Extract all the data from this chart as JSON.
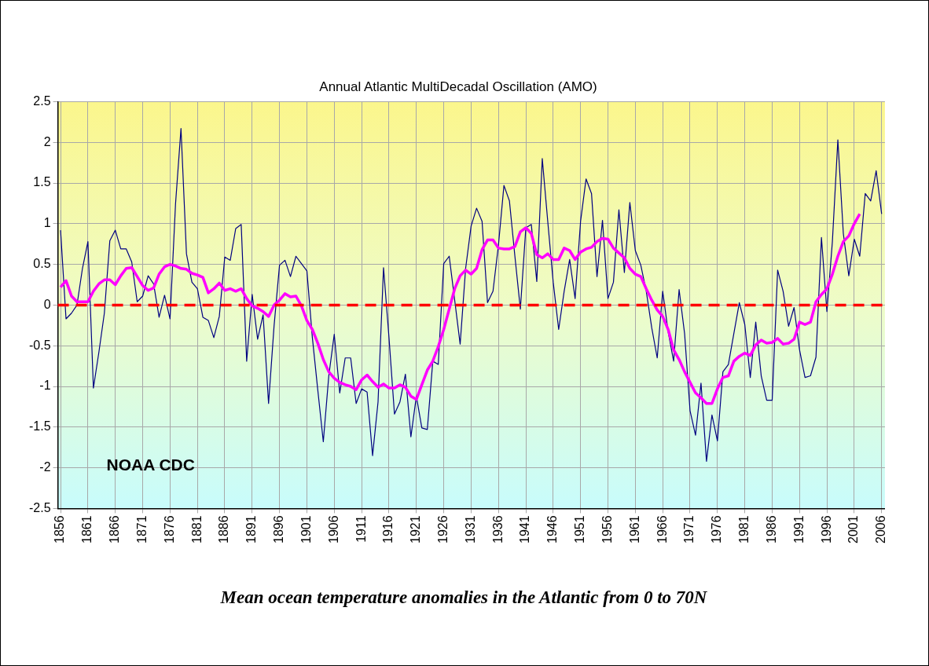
{
  "chart_data": {
    "type": "line",
    "title": "Annual Atlantic MultiDecadal Oscillation (AMO)",
    "xlim": [
      1855.5,
      2006.6
    ],
    "xticks": [
      1856,
      1861,
      1866,
      1871,
      1876,
      1881,
      1886,
      1891,
      1896,
      1901,
      1906,
      1911,
      1916,
      1921,
      1926,
      1931,
      1936,
      1941,
      1946,
      1951,
      1956,
      1961,
      1966,
      1971,
      1976,
      1981,
      1986,
      1991,
      1996,
      2001,
      2006
    ],
    "ylim": [
      -2.5,
      2.5
    ],
    "yticks": [
      -2.5,
      -2,
      -1.5,
      -1,
      -0.5,
      0,
      0.5,
      1,
      1.5,
      2,
      2.5
    ],
    "grid": true,
    "legend": false,
    "marker": "none",
    "series": [
      {
        "color": "#000080",
        "x": [
          1856,
          1857,
          1858,
          1859,
          1860,
          1861,
          1862,
          1863,
          1864,
          1865,
          1866,
          1867,
          1868,
          1869,
          1870,
          1871,
          1872,
          1873,
          1874,
          1875,
          1876,
          1877,
          1878,
          1879,
          1880,
          1881,
          1882,
          1883,
          1884,
          1885,
          1886,
          1887,
          1888,
          1889,
          1890,
          1891,
          1892,
          1893,
          1894,
          1895,
          1896,
          1897,
          1898,
          1899,
          1900,
          1901,
          1902,
          1903,
          1904,
          1905,
          1906,
          1907,
          1908,
          1909,
          1910,
          1911,
          1912,
          1913,
          1914,
          1915,
          1916,
          1917,
          1918,
          1919,
          1920,
          1921,
          1922,
          1923,
          1924,
          1925,
          1926,
          1927,
          1928,
          1929,
          1930,
          1931,
          1932,
          1933,
          1934,
          1935,
          1936,
          1937,
          1938,
          1939,
          1940,
          1941,
          1942,
          1943,
          1944,
          1945,
          1946,
          1947,
          1948,
          1949,
          1950,
          1951,
          1952,
          1953,
          1954,
          1955,
          1956,
          1957,
          1958,
          1959,
          1960,
          1961,
          1962,
          1963,
          1964,
          1965,
          1966,
          1967,
          1968,
          1969,
          1970,
          1971,
          1972,
          1973,
          1974,
          1975,
          1976,
          1977,
          1978,
          1979,
          1980,
          1981,
          1982,
          1983,
          1984,
          1985,
          1986,
          1987,
          1988,
          1989,
          1990,
          1991,
          1992,
          1993,
          1994,
          1995,
          1996,
          1997,
          1998,
          1999,
          2000,
          2001,
          2002,
          2003,
          2004,
          2005,
          2006
        ],
        "values": [
          0.92,
          -0.17,
          -0.1,
          0,
          0.45,
          0.78,
          -1.02,
          -0.58,
          -0.1,
          0.79,
          0.92,
          0.69,
          0.69,
          0.53,
          0.04,
          0.11,
          0.36,
          0.26,
          -0.15,
          0.12,
          -0.17,
          1.24,
          2.17,
          0.63,
          0.28,
          0.2,
          -0.15,
          -0.19,
          -0.4,
          -0.14,
          0.59,
          0.55,
          0.94,
          0.99,
          -0.69,
          0.13,
          -0.42,
          -0.12,
          -1.21,
          -0.26,
          0.49,
          0.55,
          0.35,
          0.6,
          0.51,
          0.42,
          -0.4,
          -1.05,
          -1.68,
          -0.87,
          -0.36,
          -1.08,
          -0.65,
          -0.65,
          -1.21,
          -1.03,
          -1.07,
          -1.85,
          -1.19,
          0.46,
          -0.4,
          -1.34,
          -1.19,
          -0.85,
          -1.62,
          -1.12,
          -1.51,
          -1.53,
          -0.69,
          -0.73,
          0.51,
          0.6,
          0.06,
          -0.48,
          0.45,
          0.97,
          1.19,
          1.03,
          0.03,
          0.17,
          0.74,
          1.47,
          1.28,
          0.6,
          -0.05,
          0.95,
          0.99,
          0.29,
          1.8,
          1.03,
          0.28,
          -0.3,
          0.17,
          0.56,
          0.08,
          1.03,
          1.55,
          1.37,
          0.35,
          1.04,
          0.08,
          0.28,
          1.17,
          0.4,
          1.26,
          0.67,
          0.49,
          0.17,
          -0.28,
          -0.65,
          0.17,
          -0.33,
          -0.69,
          0.19,
          -0.35,
          -1.3,
          -1.6,
          -0.96,
          -1.92,
          -1.35,
          -1.67,
          -0.82,
          -0.73,
          -0.35,
          0.03,
          -0.24,
          -0.89,
          -0.21,
          -0.87,
          -1.17,
          -1.17,
          0.43,
          0.17,
          -0.26,
          -0.03,
          -0.55,
          -0.89,
          -0.87,
          -0.64,
          0.83,
          -0.08,
          0.78,
          2.03,
          0.88,
          0.36,
          0.81,
          0.6,
          1.37,
          1.28,
          1.65,
          1.12
        ]
      },
      {
        "color": "#ff00ff",
        "x": [
          1856,
          1857,
          1858,
          1859,
          1860,
          1861,
          1862,
          1863,
          1864,
          1865,
          1866,
          1867,
          1868,
          1869,
          1870,
          1871,
          1872,
          1873,
          1874,
          1875,
          1876,
          1877,
          1878,
          1879,
          1880,
          1881,
          1882,
          1883,
          1884,
          1885,
          1886,
          1887,
          1888,
          1889,
          1890,
          1891,
          1892,
          1893,
          1894,
          1895,
          1896,
          1897,
          1898,
          1899,
          1900,
          1901,
          1902,
          1903,
          1904,
          1905,
          1906,
          1907,
          1908,
          1909,
          1910,
          1911,
          1912,
          1913,
          1914,
          1915,
          1916,
          1917,
          1918,
          1919,
          1920,
          1921,
          1922,
          1923,
          1924,
          1925,
          1926,
          1927,
          1928,
          1929,
          1930,
          1931,
          1932,
          1933,
          1934,
          1935,
          1936,
          1937,
          1938,
          1939,
          1940,
          1941,
          1942,
          1943,
          1944,
          1945,
          1946,
          1947,
          1948,
          1949,
          1950,
          1951,
          1952,
          1953,
          1954,
          1955,
          1956,
          1957,
          1958,
          1959,
          1960,
          1961,
          1962,
          1963,
          1964,
          1965,
          1966,
          1967,
          1968,
          1969,
          1970,
          1971,
          1972,
          1973,
          1974,
          1975,
          1976,
          1977,
          1978,
          1979,
          1980,
          1981,
          1982,
          1983,
          1984,
          1985,
          1986,
          1987,
          1988,
          1989,
          1990,
          1991,
          1992,
          1993,
          1994,
          1995,
          1996,
          1997,
          1998,
          1999,
          2000,
          2001,
          2002
        ],
        "values": [
          0.22,
          0.3,
          0.11,
          0.04,
          0.04,
          0.04,
          0.17,
          0.26,
          0.31,
          0.31,
          0.25,
          0.36,
          0.45,
          0.46,
          0.35,
          0.24,
          0.18,
          0.21,
          0.38,
          0.47,
          0.5,
          0.48,
          0.45,
          0.44,
          0.39,
          0.37,
          0.34,
          0.15,
          0.2,
          0.27,
          0.18,
          0.2,
          0.17,
          0.2,
          0.08,
          -0.01,
          -0.04,
          -0.08,
          -0.14,
          0,
          0.06,
          0.14,
          0.1,
          0.11,
          -0.01,
          -0.19,
          -0.3,
          -0.47,
          -0.67,
          -0.82,
          -0.9,
          -0.95,
          -0.98,
          -1,
          -1.04,
          -0.92,
          -0.86,
          -0.94,
          -1.01,
          -0.97,
          -1.02,
          -1.02,
          -0.98,
          -1.01,
          -1.12,
          -1.16,
          -0.98,
          -0.8,
          -0.69,
          -0.51,
          -0.3,
          -0.05,
          0.2,
          0.36,
          0.43,
          0.38,
          0.45,
          0.68,
          0.8,
          0.8,
          0.7,
          0.69,
          0.69,
          0.72,
          0.9,
          0.95,
          0.88,
          0.62,
          0.58,
          0.63,
          0.56,
          0.56,
          0.7,
          0.67,
          0.56,
          0.65,
          0.69,
          0.71,
          0.78,
          0.82,
          0.81,
          0.7,
          0.64,
          0.58,
          0.45,
          0.38,
          0.35,
          0.2,
          0.06,
          -0.06,
          -0.14,
          -0.3,
          -0.55,
          -0.67,
          -0.82,
          -0.95,
          -1.08,
          -1.14,
          -1.21,
          -1.21,
          -1.03,
          -0.89,
          -0.87,
          -0.69,
          -0.63,
          -0.59,
          -0.62,
          -0.49,
          -0.43,
          -0.47,
          -0.46,
          -0.41,
          -0.48,
          -0.47,
          -0.42,
          -0.21,
          -0.24,
          -0.21,
          0.04,
          0.13,
          0.2,
          0.38,
          0.6,
          0.78,
          0.85,
          1,
          1.12
        ]
      }
    ],
    "ref_lines": [
      {
        "axis": "y",
        "value": 0,
        "color": "#ff0000",
        "line_style": "dashed"
      }
    ],
    "annotations": [
      "NOAA CDC",
      "Mean ocean temperature anomalies in the Atlantic from 0 to 70N"
    ]
  }
}
